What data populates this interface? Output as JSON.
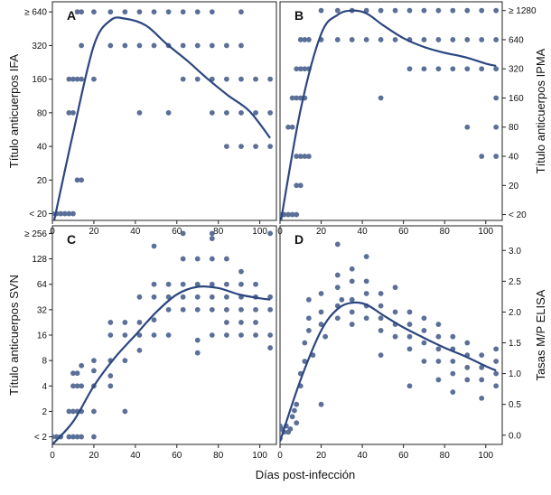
{
  "common_xlabel": "Días post-infección",
  "colors": {
    "point": "#5b6f98",
    "curve": "#2c4680",
    "frame": "#222222"
  },
  "chart_data": [
    {
      "type": "scatter",
      "panel": "A",
      "ylabel": "Título anticuerpos IFA",
      "y_axis_side": "left",
      "xlim": [
        0,
        108
      ],
      "xticks": [
        0,
        20,
        40,
        60,
        80,
        100
      ],
      "x_ticklabels": [
        "0",
        "20",
        "40",
        "60",
        "80",
        "100"
      ],
      "ylim": [
        -0.2,
        6.3
      ],
      "yticks": [
        0,
        1,
        2,
        3,
        4,
        5,
        6
      ],
      "y_ticklabels": [
        "< 20",
        "20",
        "40",
        "80",
        "160",
        "320",
        "≥ 640"
      ],
      "points": [
        [
          0,
          0
        ],
        [
          2,
          0
        ],
        [
          4,
          0
        ],
        [
          6,
          0
        ],
        [
          8,
          0
        ],
        [
          10,
          0
        ],
        [
          12,
          1
        ],
        [
          14,
          1
        ],
        [
          8,
          3
        ],
        [
          10,
          3
        ],
        [
          8,
          4
        ],
        [
          10,
          4
        ],
        [
          12,
          4
        ],
        [
          14,
          4
        ],
        [
          20,
          4
        ],
        [
          14,
          5
        ],
        [
          28,
          5
        ],
        [
          35,
          5
        ],
        [
          42,
          5
        ],
        [
          49,
          5
        ],
        [
          56,
          5
        ],
        [
          63,
          5
        ],
        [
          70,
          5
        ],
        [
          77,
          5
        ],
        [
          84,
          5
        ],
        [
          91,
          5
        ],
        [
          12,
          6
        ],
        [
          14,
          6
        ],
        [
          20,
          6
        ],
        [
          28,
          6
        ],
        [
          35,
          6
        ],
        [
          42,
          6
        ],
        [
          49,
          6
        ],
        [
          56,
          6
        ],
        [
          63,
          6
        ],
        [
          70,
          6
        ],
        [
          77,
          6
        ],
        [
          91,
          6
        ],
        [
          42,
          3
        ],
        [
          56,
          3
        ],
        [
          77,
          3
        ],
        [
          84,
          3
        ],
        [
          91,
          3
        ],
        [
          98,
          3
        ],
        [
          105,
          3
        ],
        [
          63,
          4
        ],
        [
          70,
          4
        ],
        [
          77,
          4
        ],
        [
          84,
          4
        ],
        [
          91,
          4
        ],
        [
          98,
          4
        ],
        [
          105,
          4
        ],
        [
          84,
          2
        ],
        [
          91,
          2
        ],
        [
          98,
          2
        ],
        [
          105,
          2
        ]
      ],
      "fit": [
        [
          0,
          -0.45
        ],
        [
          10,
          2.4
        ],
        [
          20,
          5.0
        ],
        [
          28,
          5.75
        ],
        [
          35,
          5.8
        ],
        [
          45,
          5.6
        ],
        [
          55,
          5.05
        ],
        [
          65,
          4.55
        ],
        [
          75,
          4.0
        ],
        [
          85,
          3.5
        ],
        [
          95,
          3.05
        ],
        [
          105,
          2.25
        ]
      ]
    },
    {
      "type": "scatter",
      "panel": "B",
      "ylabel": "Título anticuerpos IPMA",
      "y_axis_side": "right",
      "xlim": [
        0,
        108
      ],
      "xticks": [
        0,
        20,
        40,
        60,
        80,
        100
      ],
      "x_ticklabels": [
        "0",
        "20",
        "40",
        "60",
        "80",
        "100"
      ],
      "ylim": [
        -0.2,
        7.3
      ],
      "yticks": [
        0,
        1,
        2,
        3,
        4,
        5,
        6,
        7
      ],
      "y_ticklabels": [
        "< 20",
        "20",
        "40",
        "80",
        "160",
        "320",
        "640",
        "≥ 1280"
      ],
      "points": [
        [
          0,
          0
        ],
        [
          2,
          0
        ],
        [
          4,
          0
        ],
        [
          6,
          0
        ],
        [
          8,
          0
        ],
        [
          8,
          1
        ],
        [
          10,
          1
        ],
        [
          8,
          2
        ],
        [
          10,
          2
        ],
        [
          12,
          2
        ],
        [
          14,
          2
        ],
        [
          4,
          3
        ],
        [
          6,
          3
        ],
        [
          6,
          4
        ],
        [
          8,
          4
        ],
        [
          10,
          4
        ],
        [
          12,
          4
        ],
        [
          8,
          5
        ],
        [
          10,
          5
        ],
        [
          12,
          5
        ],
        [
          14,
          5
        ],
        [
          10,
          6
        ],
        [
          12,
          6
        ],
        [
          14,
          6
        ],
        [
          20,
          6
        ],
        [
          28,
          6
        ],
        [
          35,
          6
        ],
        [
          42,
          6
        ],
        [
          49,
          6
        ],
        [
          56,
          6
        ],
        [
          63,
          6
        ],
        [
          70,
          6
        ],
        [
          77,
          6
        ],
        [
          84,
          6
        ],
        [
          91,
          6
        ],
        [
          98,
          6
        ],
        [
          105,
          6
        ],
        [
          20,
          7
        ],
        [
          28,
          7
        ],
        [
          35,
          7
        ],
        [
          42,
          7
        ],
        [
          49,
          7
        ],
        [
          56,
          7
        ],
        [
          63,
          7
        ],
        [
          70,
          7
        ],
        [
          77,
          7
        ],
        [
          84,
          7
        ],
        [
          91,
          7
        ],
        [
          98,
          7
        ],
        [
          105,
          7
        ],
        [
          63,
          5
        ],
        [
          70,
          5
        ],
        [
          77,
          5
        ],
        [
          84,
          5
        ],
        [
          91,
          5
        ],
        [
          98,
          5
        ],
        [
          105,
          5
        ],
        [
          49,
          4
        ],
        [
          105,
          4
        ],
        [
          91,
          3
        ],
        [
          105,
          3
        ],
        [
          98,
          2
        ],
        [
          105,
          2
        ]
      ],
      "fit": [
        [
          0,
          -0.4
        ],
        [
          10,
          3.6
        ],
        [
          20,
          6.2
        ],
        [
          28,
          6.85
        ],
        [
          35,
          7.0
        ],
        [
          42,
          6.9
        ],
        [
          50,
          6.5
        ],
        [
          60,
          6.05
        ],
        [
          70,
          5.75
        ],
        [
          80,
          5.55
        ],
        [
          90,
          5.4
        ],
        [
          100,
          5.18
        ],
        [
          105,
          5.1
        ]
      ]
    },
    {
      "type": "scatter",
      "panel": "C",
      "ylabel": "Título anticuerpos SVN",
      "y_axis_side": "left",
      "xlim": [
        0,
        108
      ],
      "xticks": [
        0,
        20,
        40,
        60,
        80,
        100
      ],
      "x_ticklabels": [
        "0",
        "20",
        "40",
        "60",
        "80",
        "100"
      ],
      "ylim": [
        -0.3,
        8.3
      ],
      "yticks": [
        0,
        1,
        2,
        3,
        4,
        5,
        6,
        7,
        8
      ],
      "y_ticklabels": [
        "< 2",
        "2",
        "4",
        "8",
        "16",
        "32",
        "64",
        "128",
        "≥ 256"
      ],
      "points": [
        [
          0,
          0
        ],
        [
          2,
          0
        ],
        [
          4,
          0
        ],
        [
          8,
          0
        ],
        [
          10,
          0
        ],
        [
          12,
          0
        ],
        [
          14,
          0
        ],
        [
          20,
          0
        ],
        [
          8,
          1
        ],
        [
          10,
          1
        ],
        [
          12,
          1
        ],
        [
          14,
          1
        ],
        [
          20,
          1
        ],
        [
          35,
          1
        ],
        [
          10,
          2
        ],
        [
          12,
          2
        ],
        [
          14,
          2
        ],
        [
          20,
          2
        ],
        [
          28,
          2
        ],
        [
          10,
          2.5
        ],
        [
          12,
          2.5
        ],
        [
          14,
          2.8
        ],
        [
          20,
          2.6
        ],
        [
          28,
          2.4
        ],
        [
          20,
          3
        ],
        [
          28,
          3
        ],
        [
          35,
          3
        ],
        [
          42,
          3.4
        ],
        [
          28,
          4
        ],
        [
          35,
          4
        ],
        [
          42,
          4
        ],
        [
          49,
          4
        ],
        [
          56,
          4
        ],
        [
          70,
          3.8
        ],
        [
          77,
          4
        ],
        [
          84,
          4
        ],
        [
          91,
          4
        ],
        [
          98,
          4
        ],
        [
          105,
          4
        ],
        [
          28,
          4.5
        ],
        [
          35,
          4.5
        ],
        [
          42,
          4.5
        ],
        [
          49,
          4.6
        ],
        [
          56,
          5
        ],
        [
          63,
          5
        ],
        [
          70,
          5
        ],
        [
          77,
          5
        ],
        [
          84,
          5
        ],
        [
          91,
          5
        ],
        [
          98,
          5
        ],
        [
          105,
          5
        ],
        [
          42,
          5.5
        ],
        [
          49,
          5.5
        ],
        [
          56,
          5.5
        ],
        [
          63,
          5.5
        ],
        [
          70,
          5.5
        ],
        [
          77,
          5.5
        ],
        [
          84,
          5.5
        ],
        [
          91,
          5.5
        ],
        [
          98,
          5.5
        ],
        [
          105,
          5.5
        ],
        [
          49,
          6
        ],
        [
          56,
          6
        ],
        [
          63,
          6
        ],
        [
          70,
          6
        ],
        [
          77,
          6
        ],
        [
          84,
          6
        ],
        [
          91,
          6
        ],
        [
          98,
          6
        ],
        [
          63,
          7
        ],
        [
          70,
          7
        ],
        [
          77,
          7
        ],
        [
          84,
          7
        ],
        [
          91,
          6.5
        ],
        [
          49,
          7.5
        ],
        [
          63,
          8
        ],
        [
          77,
          8
        ],
        [
          105,
          8
        ],
        [
          77,
          7.8
        ],
        [
          84,
          4.5
        ],
        [
          91,
          4.5
        ],
        [
          70,
          3.3
        ],
        [
          105,
          3.5
        ],
        [
          98,
          4.5
        ]
      ],
      "fit": [
        [
          0,
          -0.3
        ],
        [
          10,
          0.6
        ],
        [
          20,
          2.0
        ],
        [
          30,
          3.1
        ],
        [
          40,
          4.0
        ],
        [
          50,
          4.9
        ],
        [
          60,
          5.6
        ],
        [
          70,
          5.9
        ],
        [
          80,
          5.85
        ],
        [
          90,
          5.6
        ],
        [
          100,
          5.45
        ],
        [
          105,
          5.4
        ]
      ]
    },
    {
      "type": "scatter",
      "panel": "D",
      "ylabel": "Tasas M/P ELISA",
      "y_axis_side": "right",
      "xlim": [
        0,
        108
      ],
      "xticks": [
        0,
        20,
        40,
        60,
        80,
        100
      ],
      "x_ticklabels": [
        "0",
        "20",
        "40",
        "60",
        "80",
        "100"
      ],
      "ylim": [
        -0.15,
        3.4
      ],
      "yticks": [
        0,
        0.5,
        1.0,
        1.5,
        2.0,
        2.5,
        3.0
      ],
      "y_ticklabels": [
        "0.0",
        "0.5",
        "1.0",
        "1.5",
        "2.0",
        "2.5",
        "3.0"
      ],
      "points": [
        [
          0,
          0.15
        ],
        [
          0,
          -0.05
        ],
        [
          1,
          0.1
        ],
        [
          2,
          0.05
        ],
        [
          3,
          0.15
        ],
        [
          4,
          0.05
        ],
        [
          5,
          0.1
        ],
        [
          6,
          0.3
        ],
        [
          7,
          0.4
        ],
        [
          8,
          0.2
        ],
        [
          8,
          0.5
        ],
        [
          10,
          0.8
        ],
        [
          10,
          1.0
        ],
        [
          12,
          1.2
        ],
        [
          12,
          1.5
        ],
        [
          14,
          1.7
        ],
        [
          14,
          1.9
        ],
        [
          14,
          2.2
        ],
        [
          16,
          1.3
        ],
        [
          20,
          0.5
        ],
        [
          20,
          1.8
        ],
        [
          20,
          2.0
        ],
        [
          20,
          2.3
        ],
        [
          22,
          1.6
        ],
        [
          28,
          1.9
        ],
        [
          28,
          2.1
        ],
        [
          28,
          2.4
        ],
        [
          28,
          2.6
        ],
        [
          28,
          3.1
        ],
        [
          30,
          2.2
        ],
        [
          35,
          1.8
        ],
        [
          35,
          2.0
        ],
        [
          35,
          2.2
        ],
        [
          35,
          2.5
        ],
        [
          35,
          2.7
        ],
        [
          42,
          1.9
        ],
        [
          42,
          2.1
        ],
        [
          42,
          2.3
        ],
        [
          42,
          2.5
        ],
        [
          42,
          2.9
        ],
        [
          49,
          1.7
        ],
        [
          49,
          1.9
        ],
        [
          49,
          2.1
        ],
        [
          49,
          2.3
        ],
        [
          49,
          1.3
        ],
        [
          56,
          1.6
        ],
        [
          56,
          1.8
        ],
        [
          56,
          2.0
        ],
        [
          56,
          2.4
        ],
        [
          63,
          0.8
        ],
        [
          63,
          1.4
        ],
        [
          63,
          1.6
        ],
        [
          63,
          1.8
        ],
        [
          63,
          2.0
        ],
        [
          70,
          1.2
        ],
        [
          70,
          1.5
        ],
        [
          70,
          1.7
        ],
        [
          70,
          1.9
        ],
        [
          77,
          0.9
        ],
        [
          77,
          1.2
        ],
        [
          77,
          1.4
        ],
        [
          77,
          1.6
        ],
        [
          77,
          1.8
        ],
        [
          84,
          0.7
        ],
        [
          84,
          1.0
        ],
        [
          84,
          1.2
        ],
        [
          84,
          1.4
        ],
        [
          84,
          1.6
        ],
        [
          91,
          0.9
        ],
        [
          91,
          1.1
        ],
        [
          91,
          1.3
        ],
        [
          91,
          1.5
        ],
        [
          98,
          0.6
        ],
        [
          98,
          0.9
        ],
        [
          98,
          1.1
        ],
        [
          98,
          1.3
        ],
        [
          105,
          0.8
        ],
        [
          105,
          1.0
        ],
        [
          105,
          1.2
        ],
        [
          105,
          1.4
        ]
      ],
      "fit": [
        [
          0,
          -0.1
        ],
        [
          10,
          0.9
        ],
        [
          20,
          1.7
        ],
        [
          28,
          2.05
        ],
        [
          35,
          2.15
        ],
        [
          42,
          2.12
        ],
        [
          50,
          1.95
        ],
        [
          60,
          1.75
        ],
        [
          70,
          1.58
        ],
        [
          80,
          1.42
        ],
        [
          90,
          1.28
        ],
        [
          100,
          1.12
        ],
        [
          105,
          1.05
        ]
      ]
    }
  ]
}
